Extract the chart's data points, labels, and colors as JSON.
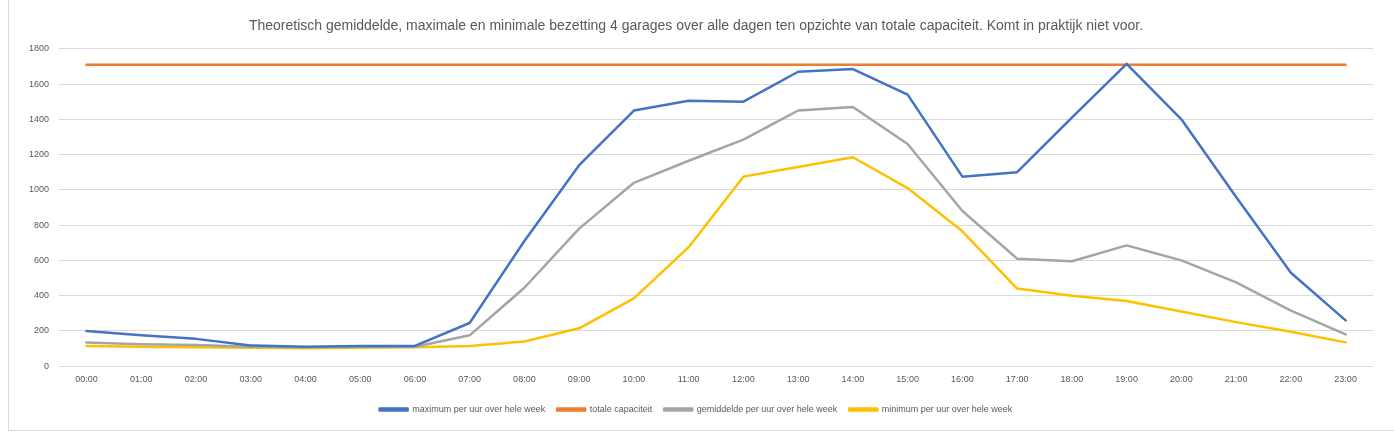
{
  "chart_data": {
    "type": "line",
    "title": "Theoretisch gemiddelde, maximale en minimale bezetting 4 garages over alle dagen ten opzichte van totale capaciteit. Komt in praktijk niet voor.",
    "categories": [
      "00:00",
      "01:00",
      "02:00",
      "03:00",
      "04:00",
      "05:00",
      "06:00",
      "07:00",
      "08:00",
      "09:00",
      "10:00",
      "11:00",
      "12:00",
      "13:00",
      "14:00",
      "15:00",
      "16:00",
      "17:00",
      "18:00",
      "19:00",
      "20:00",
      "21:00",
      "22:00",
      "23:00"
    ],
    "series": [
      {
        "name": "maximum per uur over hele week",
        "color": "#4472c4",
        "values": [
          200,
          175,
          155,
          118,
          110,
          115,
          115,
          245,
          710,
          1140,
          1450,
          1505,
          1500,
          1670,
          1685,
          1540,
          1075,
          1100,
          1410,
          1715,
          1400,
          960,
          530,
          260
        ]
      },
      {
        "name": "totale capaciteit",
        "color": "#ed7d31",
        "values": [
          1710,
          1710,
          1710,
          1710,
          1710,
          1710,
          1710,
          1710,
          1710,
          1710,
          1710,
          1710,
          1710,
          1710,
          1710,
          1710,
          1710,
          1710,
          1710,
          1710,
          1710,
          1710,
          1710,
          1710
        ]
      },
      {
        "name": "gemiddelde per uur over hele week",
        "color": "#a5a5a5",
        "values": [
          135,
          125,
          120,
          110,
          108,
          110,
          110,
          175,
          445,
          780,
          1040,
          1165,
          1285,
          1450,
          1470,
          1260,
          880,
          610,
          595,
          685,
          600,
          475,
          315,
          180
        ]
      },
      {
        "name": "minimum per uur over hele week",
        "color": "#ffc000",
        "values": [
          115,
          110,
          108,
          105,
          102,
          105,
          108,
          115,
          140,
          215,
          385,
          675,
          1075,
          1130,
          1185,
          1010,
          765,
          440,
          400,
          370,
          310,
          250,
          195,
          135
        ]
      }
    ],
    "ylim": [
      0,
      1800
    ],
    "yticks": [
      0,
      200,
      400,
      600,
      800,
      1000,
      1200,
      1400,
      1600,
      1800
    ],
    "grid": "y",
    "legend": "bottom",
    "marker": "none",
    "line_style": "solid"
  }
}
